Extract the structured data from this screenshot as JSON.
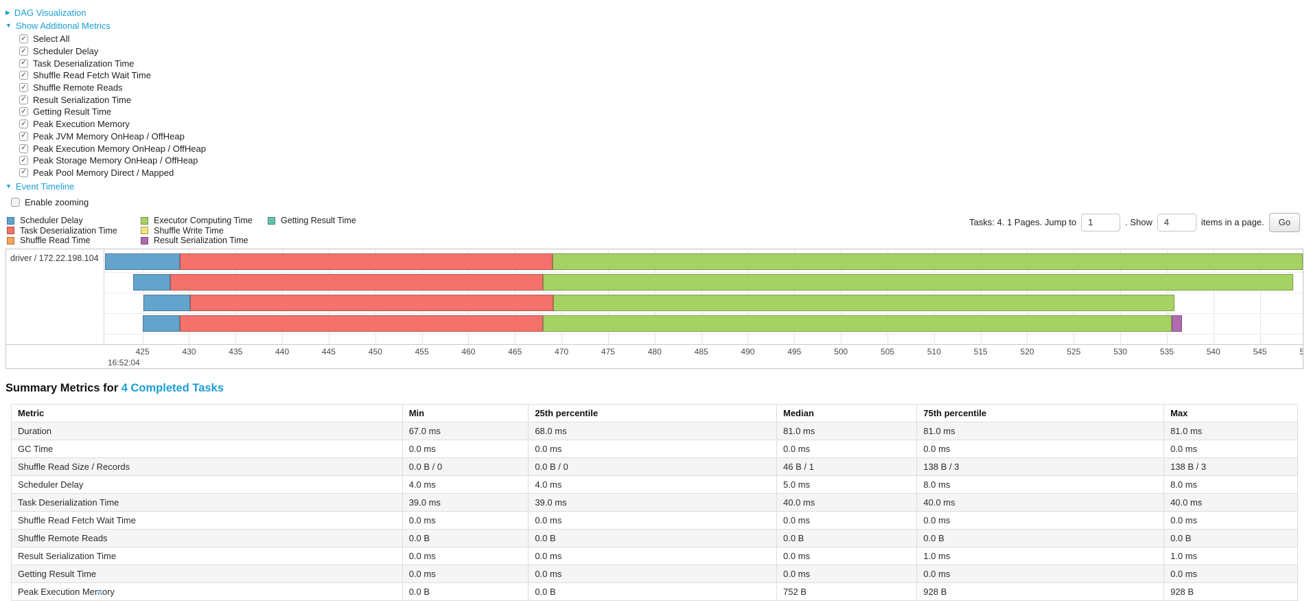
{
  "links_color": "#1b9ed5",
  "dag_section": {
    "label": "DAG Visualization",
    "state": "collapsed"
  },
  "metrics_panel": {
    "label": "Show Additional Metrics",
    "state": "expanded",
    "items": [
      {
        "label": "Select All",
        "checked": true
      },
      {
        "label": "Scheduler Delay",
        "checked": true
      },
      {
        "label": "Task Deserialization Time",
        "checked": true
      },
      {
        "label": "Shuffle Read Fetch Wait Time",
        "checked": true
      },
      {
        "label": "Shuffle Remote Reads",
        "checked": true
      },
      {
        "label": "Result Serialization Time",
        "checked": true
      },
      {
        "label": "Getting Result Time",
        "checked": true
      },
      {
        "label": "Peak Execution Memory",
        "checked": true
      },
      {
        "label": "Peak JVM Memory OnHeap / OffHeap",
        "checked": true
      },
      {
        "label": "Peak Execution Memory OnHeap / OffHeap",
        "checked": true
      },
      {
        "label": "Peak Storage Memory OnHeap / OffHeap",
        "checked": true
      },
      {
        "label": "Peak Pool Memory Direct / Mapped",
        "checked": true
      }
    ]
  },
  "event_timeline_section": {
    "label": "Event Timeline",
    "state": "expanded"
  },
  "enable_zooming": {
    "label": "Enable zooming",
    "checked": false
  },
  "legend": {
    "columns": [
      [
        {
          "label": "Scheduler Delay",
          "color_key": "scheduler_delay"
        },
        {
          "label": "Task Deserialization Time",
          "color_key": "task_deserialization"
        },
        {
          "label": "Shuffle Read Time",
          "color_key": "shuffle_read"
        }
      ],
      [
        {
          "label": "Executor Computing Time",
          "color_key": "executor_computing"
        },
        {
          "label": "Shuffle Write Time",
          "color_key": "shuffle_write"
        },
        {
          "label": "Result Serialization Time",
          "color_key": "result_serialization"
        }
      ],
      [
        {
          "label": "Getting Result Time",
          "color_key": "getting_result"
        }
      ]
    ]
  },
  "pagination": {
    "prefix": "Tasks: 4. 1 Pages. Jump to",
    "jump_value": "1",
    "mid": ". Show",
    "show_value": "4",
    "suffix": "items in a page.",
    "go_label": "Go"
  },
  "chart_data": {
    "type": "timeline",
    "group_label": "driver / 172.22.198.104",
    "colors": {
      "scheduler_delay": "#63a4cc",
      "task_deserialization": "#f4726b",
      "shuffle_read": "#f9a45c",
      "executor_computing": "#a6d264",
      "shuffle_write": "#f3e57c",
      "result_serialization": "#b16bb0",
      "getting_result": "#65c2b1"
    },
    "axis": {
      "min": 420.9,
      "max": 549.6,
      "tick_start": 425,
      "tick_end": 550,
      "tick_step": 5,
      "second_label": "16:52:04",
      "unit": "ms within second 16:52:04"
    },
    "tasks": [
      {
        "segments": [
          {
            "metric": "scheduler_delay",
            "start": 421.0,
            "end": 429.0
          },
          {
            "metric": "task_deserialization",
            "start": 429.0,
            "end": 469.0
          },
          {
            "metric": "executor_computing",
            "start": 469.0,
            "end": 549.6
          }
        ]
      },
      {
        "segments": [
          {
            "metric": "scheduler_delay",
            "start": 424.0,
            "end": 428.0
          },
          {
            "metric": "task_deserialization",
            "start": 428.0,
            "end": 468.0
          },
          {
            "metric": "executor_computing",
            "start": 468.0,
            "end": 548.6
          }
        ]
      },
      {
        "segments": [
          {
            "metric": "scheduler_delay",
            "start": 425.1,
            "end": 430.1
          },
          {
            "metric": "task_deserialization",
            "start": 430.1,
            "end": 469.1
          },
          {
            "metric": "executor_computing",
            "start": 469.1,
            "end": 535.8
          }
        ]
      },
      {
        "segments": [
          {
            "metric": "scheduler_delay",
            "start": 425.0,
            "end": 429.0
          },
          {
            "metric": "task_deserialization",
            "start": 429.0,
            "end": 468.0
          },
          {
            "metric": "executor_computing",
            "start": 468.0,
            "end": 535.5
          },
          {
            "metric": "result_serialization",
            "start": 535.5,
            "end": 536.6
          }
        ]
      }
    ]
  },
  "summary": {
    "title_prefix": "Summary Metrics for",
    "title_link": "4 Completed Tasks",
    "table": {
      "headers": [
        "Metric",
        "Min",
        "25th percentile",
        "Median",
        "75th percentile",
        "Max"
      ],
      "col_widths_pct": [
        30.4,
        9.8,
        19.3,
        10.9,
        19.2,
        10.4
      ],
      "rows": [
        [
          "Duration",
          "67.0 ms",
          "68.0 ms",
          "81.0 ms",
          "81.0 ms",
          "81.0 ms"
        ],
        [
          "GC Time",
          "0.0 ms",
          "0.0 ms",
          "0.0 ms",
          "0.0 ms",
          "0.0 ms"
        ],
        [
          "Shuffle Read Size / Records",
          "0.0 B / 0",
          "0.0 B / 0",
          "46 B / 1",
          "138 B / 3",
          "138 B / 3"
        ],
        [
          "Scheduler Delay",
          "4.0 ms",
          "4.0 ms",
          "5.0 ms",
          "8.0 ms",
          "8.0 ms"
        ],
        [
          "Task Deserialization Time",
          "39.0 ms",
          "39.0 ms",
          "40.0 ms",
          "40.0 ms",
          "40.0 ms"
        ],
        [
          "Shuffle Read Fetch Wait Time",
          "0.0 ms",
          "0.0 ms",
          "0.0 ms",
          "0.0 ms",
          "0.0 ms"
        ],
        [
          "Shuffle Remote Reads",
          "0.0 B",
          "0.0 B",
          "0.0 B",
          "0.0 B",
          "0.0 B"
        ],
        [
          "Result Serialization Time",
          "0.0 ms",
          "0.0 ms",
          "0.0 ms",
          "1.0 ms",
          "1.0 ms"
        ],
        [
          "Getting Result Time",
          "0.0 ms",
          "0.0 ms",
          "0.0 ms",
          "0.0 ms",
          "0.0 ms"
        ],
        [
          "Peak Execution Memory",
          "0.0 B",
          "0.0 B",
          "752 B",
          "928 B",
          "928 B"
        ]
      ]
    }
  }
}
